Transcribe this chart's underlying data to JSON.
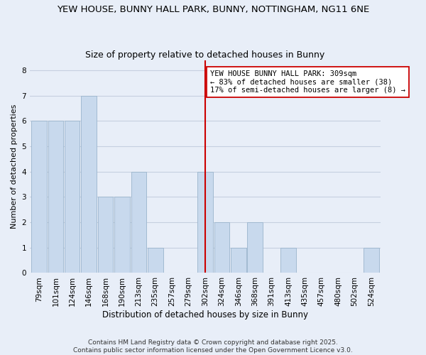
{
  "title1": "YEW HOUSE, BUNNY HALL PARK, BUNNY, NOTTINGHAM, NG11 6NE",
  "title2": "Size of property relative to detached houses in Bunny",
  "xlabel": "Distribution of detached houses by size in Bunny",
  "ylabel": "Number of detached properties",
  "categories": [
    "79sqm",
    "101sqm",
    "124sqm",
    "146sqm",
    "168sqm",
    "190sqm",
    "213sqm",
    "235sqm",
    "257sqm",
    "279sqm",
    "302sqm",
    "324sqm",
    "346sqm",
    "368sqm",
    "391sqm",
    "413sqm",
    "435sqm",
    "457sqm",
    "480sqm",
    "502sqm",
    "524sqm"
  ],
  "values": [
    6,
    6,
    6,
    7,
    3,
    3,
    4,
    1,
    0,
    0,
    4,
    2,
    1,
    2,
    0,
    1,
    0,
    0,
    0,
    0,
    1
  ],
  "bar_color": "#c8d9ed",
  "bar_edge_color": "#9ab4cc",
  "vline_x_index": 10,
  "vline_color": "#cc0000",
  "annotation_text": "YEW HOUSE BUNNY HALL PARK: 309sqm\n← 83% of detached houses are smaller (38)\n17% of semi-detached houses are larger (8) →",
  "annotation_box_color": "#ffffff",
  "annotation_box_edge": "#cc0000",
  "ylim": [
    0,
    8.4
  ],
  "yticks": [
    0,
    1,
    2,
    3,
    4,
    5,
    6,
    7,
    8
  ],
  "grid_color": "#c5cfe0",
  "background_color": "#e8eef8",
  "footnote": "Contains HM Land Registry data © Crown copyright and database right 2025.\nContains public sector information licensed under the Open Government Licence v3.0.",
  "title1_fontsize": 9.5,
  "title2_fontsize": 9,
  "xlabel_fontsize": 8.5,
  "ylabel_fontsize": 8,
  "tick_fontsize": 7.5,
  "annotation_fontsize": 7.5,
  "footnote_fontsize": 6.5
}
